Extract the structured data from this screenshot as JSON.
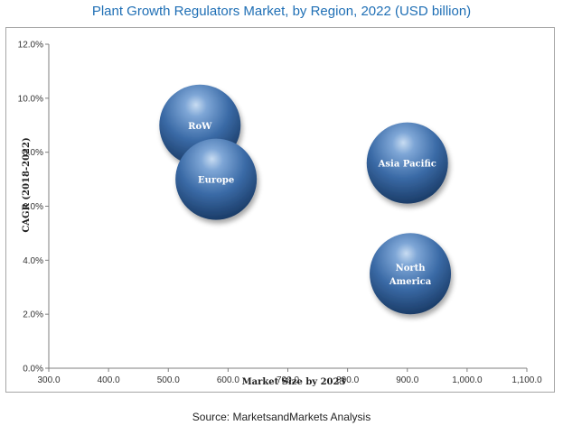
{
  "chart_data": {
    "type": "bubble",
    "title": "Plant Growth Regulators Market, by Region, 2022 (USD billion)",
    "xlabel": "Market Size by 2023",
    "ylabel": "CAGR (2018-2022)",
    "xlim": [
      300,
      1100
    ],
    "ylim": [
      0,
      12
    ],
    "x_ticks": [
      "300.0",
      "400.0",
      "500.0",
      "600.0",
      "700.0",
      "800.0",
      "900.0",
      "1,000.0",
      "1,100.0"
    ],
    "y_ticks": [
      "0.0%",
      "2.0%",
      "4.0%",
      "6.0%",
      "8.0%",
      "10.0%",
      "12.0%"
    ],
    "grid": false,
    "bubble_color": "#3a6da8",
    "points": [
      {
        "label": "RoW",
        "x": 553,
        "y": 9.0,
        "size": 1.0
      },
      {
        "label": "Europe",
        "x": 580,
        "y": 7.0,
        "size": 1.0
      },
      {
        "label": "Asia Pacific",
        "x": 900,
        "y": 7.6,
        "size": 1.0
      },
      {
        "label": "North America",
        "x": 905,
        "y": 3.5,
        "size": 1.0
      }
    ],
    "source": "Source: MarketsandMarkets Analysis"
  }
}
